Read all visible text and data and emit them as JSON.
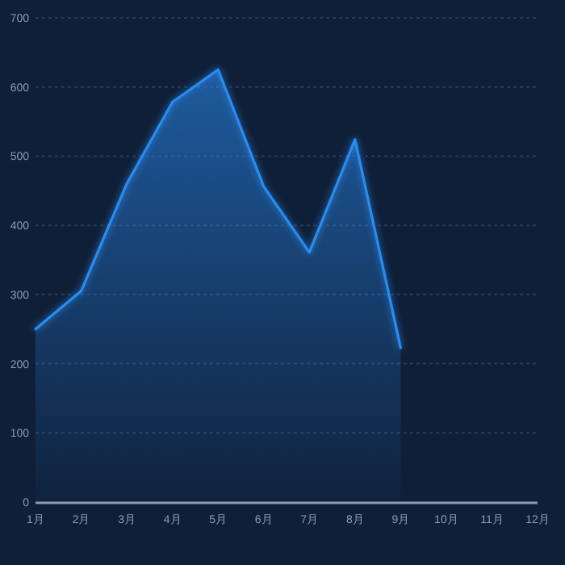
{
  "chart_data": {
    "type": "area",
    "categories": [
      "1月",
      "2月",
      "3月",
      "4月",
      "5月",
      "6月",
      "7月",
      "8月",
      "9月",
      "10月",
      "11月",
      "12月"
    ],
    "series": [
      {
        "color": "#2a8cf0",
        "values": [
          250,
          305,
          460,
          578,
          625,
          456,
          361,
          524,
          223,
          null,
          null,
          null
        ]
      }
    ],
    "ylim": [
      0,
      700
    ],
    "yticks": [
      0,
      100,
      200,
      300,
      400,
      500,
      600,
      700
    ],
    "grid": "y",
    "marker": "none",
    "line_style": "solid"
  }
}
